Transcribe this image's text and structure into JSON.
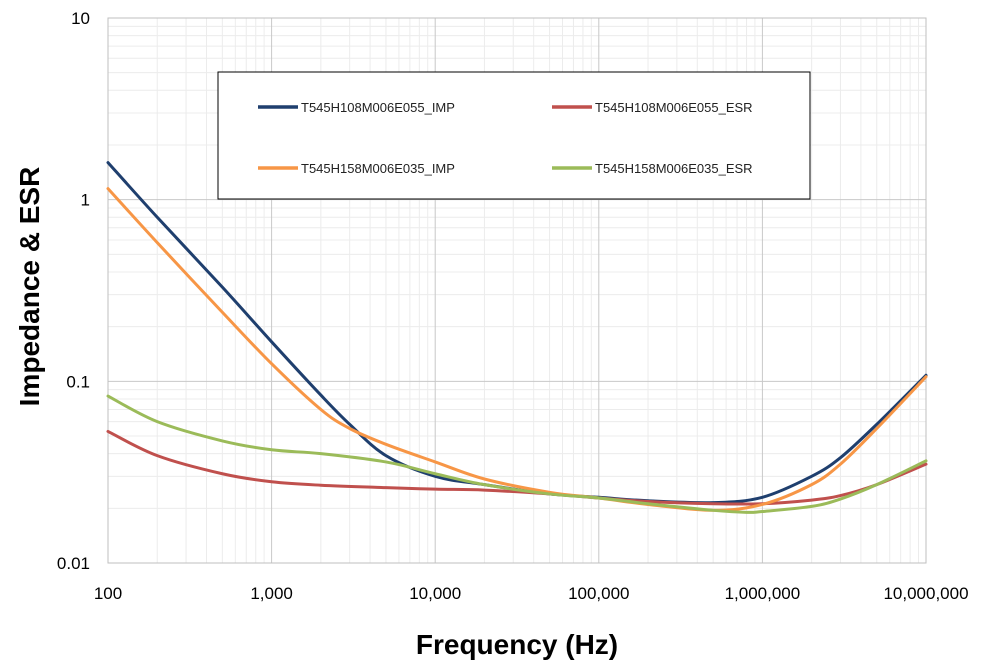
{
  "chart_data": {
    "type": "line",
    "xscale": "log",
    "yscale": "log",
    "xlim": [
      100,
      10000000
    ],
    "ylim": [
      0.01,
      10
    ],
    "xlabel": "Frequency (Hz)",
    "ylabel": "Impedance & ESR",
    "x_tick_labels": [
      "100",
      "1,000",
      "10,000",
      "100,000",
      "1,000,000",
      "10,000,000"
    ],
    "y_tick_labels": [
      "0.01",
      "0.1",
      "1",
      "10"
    ],
    "grid": true,
    "legend_position": "top-center",
    "series": [
      {
        "name": "T545H108M006E055_IMP",
        "color": "#1f3f6e",
        "x": [
          100,
          200,
          500,
          1000,
          2000,
          3000,
          5000,
          10000,
          20000,
          50000,
          100000,
          200000,
          500000,
          1000000,
          2000000,
          3000000,
          5000000,
          10000000
        ],
        "y": [
          1.6,
          0.8,
          0.33,
          0.165,
          0.084,
          0.058,
          0.039,
          0.03,
          0.027,
          0.024,
          0.023,
          0.022,
          0.0215,
          0.023,
          0.03,
          0.038,
          0.058,
          0.108
        ]
      },
      {
        "name": "T545H108M006E055_ESR",
        "color": "#c0504d",
        "x": [
          100,
          200,
          500,
          1000,
          2000,
          5000,
          10000,
          20000,
          50000,
          100000,
          200000,
          500000,
          1000000,
          2000000,
          3000000,
          5000000,
          10000000
        ],
        "y": [
          0.053,
          0.039,
          0.031,
          0.028,
          0.0268,
          0.026,
          0.0255,
          0.0252,
          0.024,
          0.0228,
          0.0218,
          0.0212,
          0.0212,
          0.0222,
          0.0235,
          0.027,
          0.035
        ]
      },
      {
        "name": "T545H158M006E035_IMP",
        "color": "#f79646",
        "x": [
          100,
          200,
          500,
          1000,
          2000,
          3000,
          5000,
          10000,
          20000,
          50000,
          100000,
          200000,
          500000,
          1000000,
          2000000,
          3000000,
          5000000,
          10000000
        ],
        "y": [
          1.15,
          0.58,
          0.24,
          0.125,
          0.07,
          0.055,
          0.045,
          0.036,
          0.029,
          0.0245,
          0.0228,
          0.021,
          0.0195,
          0.021,
          0.027,
          0.035,
          0.055,
          0.106
        ]
      },
      {
        "name": "T545H158M006E035_ESR",
        "color": "#9bbb59",
        "x": [
          100,
          200,
          500,
          1000,
          2000,
          5000,
          10000,
          20000,
          50000,
          100000,
          200000,
          500000,
          800000,
          1000000,
          2000000,
          3000000,
          5000000,
          10000000
        ],
        "y": [
          0.083,
          0.06,
          0.047,
          0.042,
          0.04,
          0.036,
          0.031,
          0.027,
          0.024,
          0.0228,
          0.0212,
          0.0195,
          0.019,
          0.0192,
          0.0205,
          0.0225,
          0.027,
          0.0365
        ]
      }
    ]
  }
}
